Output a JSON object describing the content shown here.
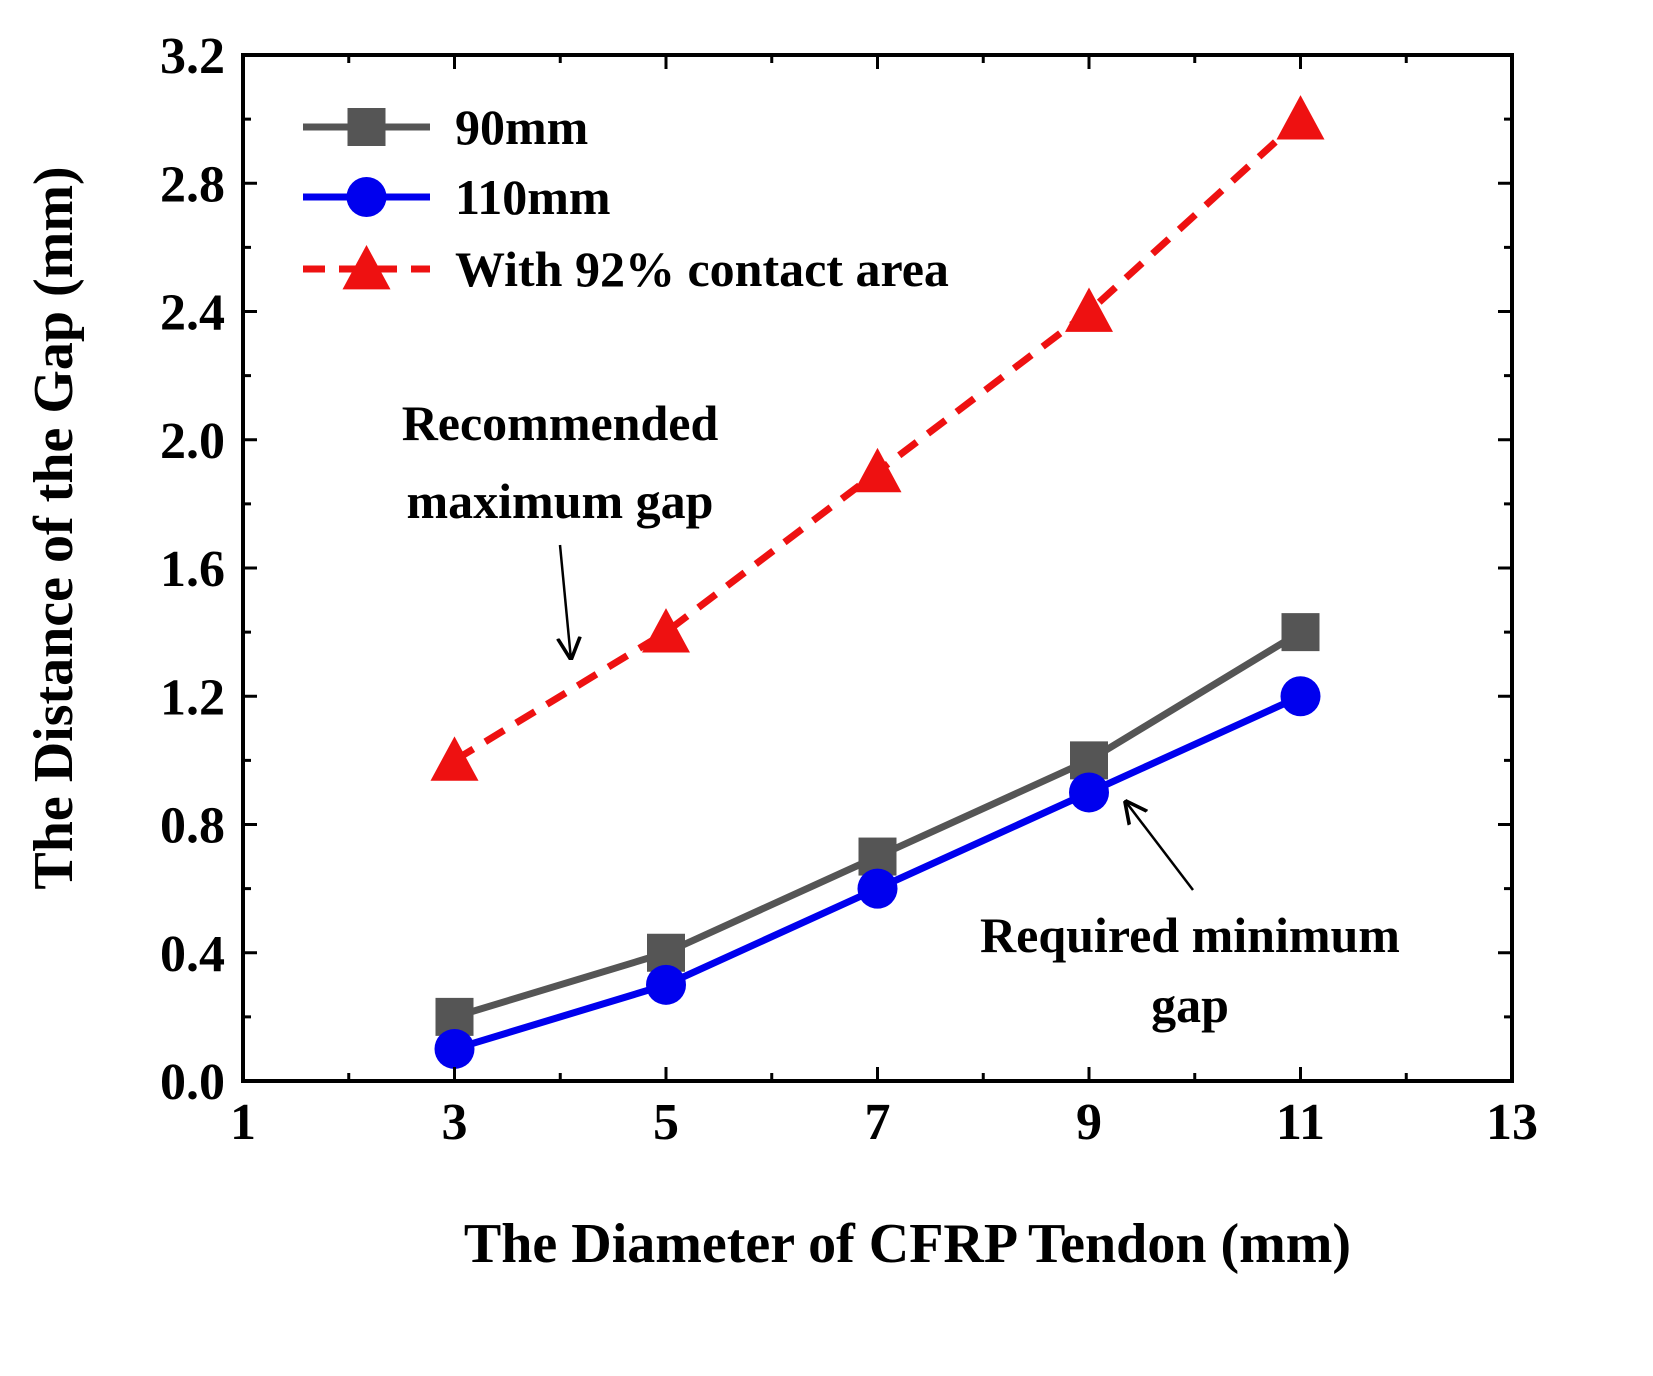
{
  "chart_data": {
    "type": "line",
    "xlabel": "The Diameter of CFRP Tendon (mm)",
    "ylabel": "The Distance of the Gap (mm)",
    "xlim": [
      1,
      13
    ],
    "ylim": [
      0,
      3.2
    ],
    "xticks": [
      1,
      3,
      5,
      7,
      9,
      11,
      13
    ],
    "xtick_labels": [
      "1",
      "3",
      "5",
      "7",
      "9",
      "11",
      "13"
    ],
    "yticks": [
      0,
      0.4,
      0.8,
      1.2,
      1.6,
      2.0,
      2.4,
      2.8,
      3.2
    ],
    "ytick_labels": [
      "0.0",
      "0.4",
      "0.8",
      "1.2",
      "1.6",
      "2.0",
      "2.4",
      "2.8",
      "3.2"
    ],
    "grid": false,
    "legend_position": "top-left",
    "series": [
      {
        "name": "90mm",
        "x": [
          3,
          5,
          7,
          9,
          11
        ],
        "y": [
          0.2,
          0.4,
          0.7,
          1.0,
          1.4
        ],
        "color": "#555555",
        "marker": "square",
        "line_style": "solid"
      },
      {
        "name": "110mm",
        "x": [
          3,
          5,
          7,
          9,
          11
        ],
        "y": [
          0.1,
          0.3,
          0.6,
          0.9,
          1.2
        ],
        "color": "#0000ee",
        "marker": "circle",
        "line_style": "solid"
      },
      {
        "name": "With 92% contact area",
        "x": [
          3,
          5,
          7,
          9,
          11
        ],
        "y": [
          1.0,
          1.4,
          1.9,
          2.4,
          3.0
        ],
        "color": "#ee1111",
        "marker": "triangle",
        "line_style": "dashed"
      }
    ],
    "annotations": [
      {
        "lines": [
          "Recommended",
          "maximum gap"
        ],
        "arrow_target": {
          "x": 4.1,
          "y": 1.32
        }
      },
      {
        "lines": [
          "Required minimum",
          "gap"
        ],
        "arrow_target": {
          "x": 9.35,
          "y": 0.87
        }
      }
    ]
  }
}
